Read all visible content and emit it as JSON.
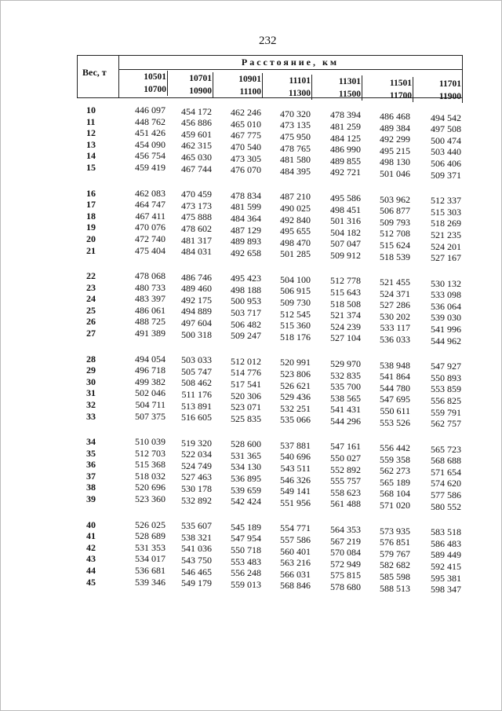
{
  "page_number": "232",
  "header": {
    "weight_label": "Вес, т",
    "distance_label": "Расстояние, км",
    "ranges": [
      {
        "from": "10501",
        "to": "10700"
      },
      {
        "from": "10701",
        "to": "10900"
      },
      {
        "from": "10901",
        "to": "11100"
      },
      {
        "from": "11101",
        "to": "11300"
      },
      {
        "from": "11301",
        "to": "11500"
      },
      {
        "from": "11501",
        "to": "11700"
      },
      {
        "from": "11701",
        "to": "11900"
      }
    ]
  },
  "rows": [
    [
      "10",
      "446 097",
      "454 172",
      "462 246",
      "470 320",
      "478 394",
      "486 468",
      "494 542"
    ],
    [
      "11",
      "448 762",
      "456 886",
      "465 010",
      "473 135",
      "481 259",
      "489 384",
      "497 508"
    ],
    [
      "12",
      "451 426",
      "459 601",
      "467 775",
      "475 950",
      "484 125",
      "492 299",
      "500 474"
    ],
    [
      "13",
      "454 090",
      "462 315",
      "470 540",
      "478 765",
      "486 990",
      "495 215",
      "503 440"
    ],
    [
      "14",
      "456 754",
      "465 030",
      "473 305",
      "481 580",
      "489 855",
      "498 130",
      "506 406"
    ],
    [
      "15",
      "459 419",
      "467 744",
      "476 070",
      "484 395",
      "492 721",
      "501 046",
      "509 371"
    ],
    [
      "16",
      "462 083",
      "470 459",
      "478 834",
      "487 210",
      "495 586",
      "503 962",
      "512 337"
    ],
    [
      "17",
      "464 747",
      "473 173",
      "481 599",
      "490 025",
      "498 451",
      "506 877",
      "515 303"
    ],
    [
      "18",
      "467 411",
      "475 888",
      "484 364",
      "492 840",
      "501 316",
      "509 793",
      "518 269"
    ],
    [
      "19",
      "470 076",
      "478 602",
      "487 129",
      "495 655",
      "504 182",
      "512 708",
      "521 235"
    ],
    [
      "20",
      "472 740",
      "481 317",
      "489 893",
      "498 470",
      "507 047",
      "515 624",
      "524 201"
    ],
    [
      "21",
      "475 404",
      "484 031",
      "492 658",
      "501 285",
      "509 912",
      "518 539",
      "527 167"
    ],
    [
      "22",
      "478 068",
      "486 746",
      "495 423",
      "504 100",
      "512 778",
      "521 455",
      "530 132"
    ],
    [
      "23",
      "480 733",
      "489 460",
      "498 188",
      "506 915",
      "515 643",
      "524 371",
      "533 098"
    ],
    [
      "24",
      "483 397",
      "492 175",
      "500 953",
      "509 730",
      "518 508",
      "527 286",
      "536 064"
    ],
    [
      "25",
      "486 061",
      "494 889",
      "503 717",
      "512 545",
      "521 374",
      "530 202",
      "539 030"
    ],
    [
      "26",
      "488 725",
      "497 604",
      "506 482",
      "515 360",
      "524 239",
      "533 117",
      "541 996"
    ],
    [
      "27",
      "491 389",
      "500 318",
      "509 247",
      "518 176",
      "527 104",
      "536 033",
      "544 962"
    ],
    [
      "28",
      "494 054",
      "503 033",
      "512 012",
      "520 991",
      "529 970",
      "538 948",
      "547 927"
    ],
    [
      "29",
      "496 718",
      "505 747",
      "514 776",
      "523 806",
      "532 835",
      "541 864",
      "550 893"
    ],
    [
      "30",
      "499 382",
      "508 462",
      "517 541",
      "526 621",
      "535 700",
      "544 780",
      "553 859"
    ],
    [
      "31",
      "502 046",
      "511 176",
      "520 306",
      "529 436",
      "538 565",
      "547 695",
      "556 825"
    ],
    [
      "32",
      "504 711",
      "513 891",
      "523 071",
      "532 251",
      "541 431",
      "550 611",
      "559 791"
    ],
    [
      "33",
      "507 375",
      "516 605",
      "525 835",
      "535 066",
      "544 296",
      "553 526",
      "562 757"
    ],
    [
      "34",
      "510 039",
      "519 320",
      "528 600",
      "537 881",
      "547 161",
      "556 442",
      "565 723"
    ],
    [
      "35",
      "512 703",
      "522 034",
      "531 365",
      "540 696",
      "550 027",
      "559 358",
      "568 688"
    ],
    [
      "36",
      "515 368",
      "524 749",
      "534 130",
      "543 511",
      "552 892",
      "562 273",
      "571 654"
    ],
    [
      "37",
      "518 032",
      "527 463",
      "536 895",
      "546 326",
      "555 757",
      "565 189",
      "574 620"
    ],
    [
      "38",
      "520 696",
      "530 178",
      "539 659",
      "549 141",
      "558 623",
      "568 104",
      "577 586"
    ],
    [
      "39",
      "523 360",
      "532 892",
      "542 424",
      "551 956",
      "561 488",
      "571 020",
      "580 552"
    ],
    [
      "40",
      "526 025",
      "535 607",
      "545 189",
      "554 771",
      "564 353",
      "573 935",
      "583 518"
    ],
    [
      "41",
      "528 689",
      "538 321",
      "547 954",
      "557 586",
      "567 219",
      "576 851",
      "586 483"
    ],
    [
      "42",
      "531 353",
      "541 036",
      "550 718",
      "560 401",
      "570 084",
      "579 767",
      "589 449"
    ],
    [
      "43",
      "534 017",
      "543 750",
      "553 483",
      "563 216",
      "572 949",
      "582 682",
      "592 415"
    ],
    [
      "44",
      "536 681",
      "546 465",
      "556 248",
      "566 031",
      "575 815",
      "585 598",
      "595 381"
    ],
    [
      "45",
      "539 346",
      "549 179",
      "559 013",
      "568 846",
      "578 680",
      "588 513",
      "598 347"
    ]
  ]
}
